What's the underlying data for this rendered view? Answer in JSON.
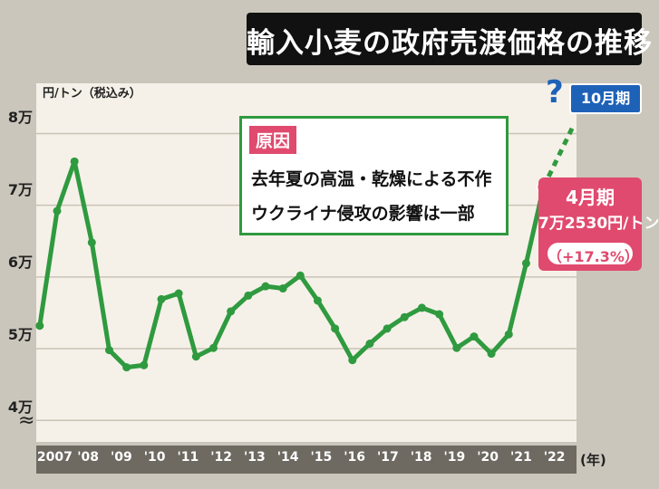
{
  "title": "輸入小麦の政府売渡価格の推移",
  "unit_label": "円/トン（税込み）",
  "y_ticks": [
    "8万",
    "7万",
    "6万",
    "5万",
    "4万"
  ],
  "x_axis_unit": "(年)",
  "x_ticks": [
    "2007",
    "'08",
    "'09",
    "'10",
    "'11",
    "'12",
    "'13",
    "'14",
    "'15",
    "'16",
    "'17",
    "'18",
    "'19",
    "'20",
    "'21",
    "'22"
  ],
  "cause_box": {
    "tag": "原因",
    "line1": "去年夏の高温・乾燥による不作",
    "line2": "ウクライナ侵攻の影響は一部"
  },
  "october_badge": "10月期",
  "question_mark": "?",
  "april_callout": {
    "label": "4月期",
    "price": "7万2530円/トン",
    "change": "（+17.3%）"
  },
  "colors": {
    "line": "#2f9a3f",
    "highlight_point": "#e8627c",
    "callout_pink": "#e04a6e",
    "badge_blue": "#1e62b8"
  },
  "chart_data": {
    "type": "line",
    "y_unit": "円/トン",
    "ylim": [
      37000,
      87000
    ],
    "y_ticks": [
      40000,
      50000,
      60000,
      70000,
      80000
    ],
    "x_range": [
      2006.9,
      2022.45
    ],
    "grid": true,
    "series": [
      {
        "values": [
          {
            "x": 2007.0,
            "y": 53200
          },
          {
            "x": 2007.5,
            "y": 69200
          },
          {
            "x": 2008.0,
            "y": 76100
          },
          {
            "x": 2008.5,
            "y": 64800
          },
          {
            "x": 2009.0,
            "y": 49800
          },
          {
            "x": 2009.5,
            "y": 47400
          },
          {
            "x": 2010.0,
            "y": 47700
          },
          {
            "x": 2010.5,
            "y": 56900
          },
          {
            "x": 2011.0,
            "y": 57700
          },
          {
            "x": 2011.5,
            "y": 48900
          },
          {
            "x": 2012.0,
            "y": 50100
          },
          {
            "x": 2012.5,
            "y": 55200
          },
          {
            "x": 2013.0,
            "y": 57400
          },
          {
            "x": 2013.5,
            "y": 58700
          },
          {
            "x": 2014.0,
            "y": 58400
          },
          {
            "x": 2014.5,
            "y": 60200
          },
          {
            "x": 2015.0,
            "y": 56700
          },
          {
            "x": 2015.5,
            "y": 52800
          },
          {
            "x": 2016.0,
            "y": 48400
          },
          {
            "x": 2016.5,
            "y": 50700
          },
          {
            "x": 2017.0,
            "y": 52800
          },
          {
            "x": 2017.5,
            "y": 54400
          },
          {
            "x": 2018.0,
            "y": 55700
          },
          {
            "x": 2018.5,
            "y": 54800
          },
          {
            "x": 2019.0,
            "y": 50100
          },
          {
            "x": 2019.5,
            "y": 51700
          },
          {
            "x": 2020.0,
            "y": 49300
          },
          {
            "x": 2020.5,
            "y": 52000
          },
          {
            "x": 2021.0,
            "y": 61900
          },
          {
            "x": 2021.5,
            "y": 72530
          }
        ]
      }
    ],
    "projection": {
      "from": {
        "x": 2021.5,
        "y": 72530
      },
      "to": {
        "x": 2022.35,
        "y": 81000
      },
      "label": "10月期"
    },
    "highlight": {
      "x": 2021.5,
      "y": 72530,
      "label": "4月期"
    }
  }
}
